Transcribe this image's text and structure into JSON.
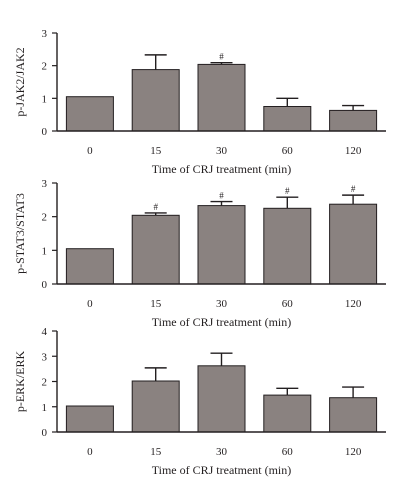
{
  "chart_data": [
    {
      "type": "bar",
      "categories": [
        "0",
        "15",
        "30",
        "60",
        "120"
      ],
      "values": [
        1.05,
        1.88,
        2.04,
        0.75,
        0.63
      ],
      "errors": [
        0.0,
        0.45,
        0.05,
        0.25,
        0.15
      ],
      "annotations": [
        "",
        "",
        "#",
        "",
        ""
      ],
      "ylabel": "p-JAK2/JAK2",
      "xlabel": "Time of CRJ treatment (min)",
      "ylim": [
        0,
        3
      ],
      "yticks": [
        0,
        1,
        2,
        3
      ],
      "grid": false,
      "bar_color": "#8a8280"
    },
    {
      "type": "bar",
      "categories": [
        "0",
        "15",
        "30",
        "60",
        "120"
      ],
      "values": [
        1.05,
        2.04,
        2.33,
        2.25,
        2.37
      ],
      "errors": [
        0.0,
        0.07,
        0.12,
        0.33,
        0.27
      ],
      "annotations": [
        "",
        "#",
        "#",
        "#",
        "#"
      ],
      "ylabel": "p-STAT3/STAT3",
      "xlabel": "Time of CRJ treatment (min)",
      "ylim": [
        0,
        3
      ],
      "yticks": [
        0,
        1,
        2,
        3
      ],
      "grid": false,
      "bar_color": "#8a8280"
    },
    {
      "type": "bar",
      "categories": [
        "0",
        "15",
        "30",
        "60",
        "120"
      ],
      "values": [
        1.03,
        2.02,
        2.62,
        1.46,
        1.36
      ],
      "errors": [
        0.0,
        0.52,
        0.5,
        0.27,
        0.42
      ],
      "annotations": [
        "",
        "",
        "",
        "",
        ""
      ],
      "ylabel": "p-ERK/ERK",
      "xlabel": "Time of CRJ treatment (min)",
      "ylim": [
        0,
        4
      ],
      "yticks": [
        0,
        1,
        2,
        3,
        4
      ],
      "grid": false,
      "bar_color": "#8a8280"
    }
  ]
}
